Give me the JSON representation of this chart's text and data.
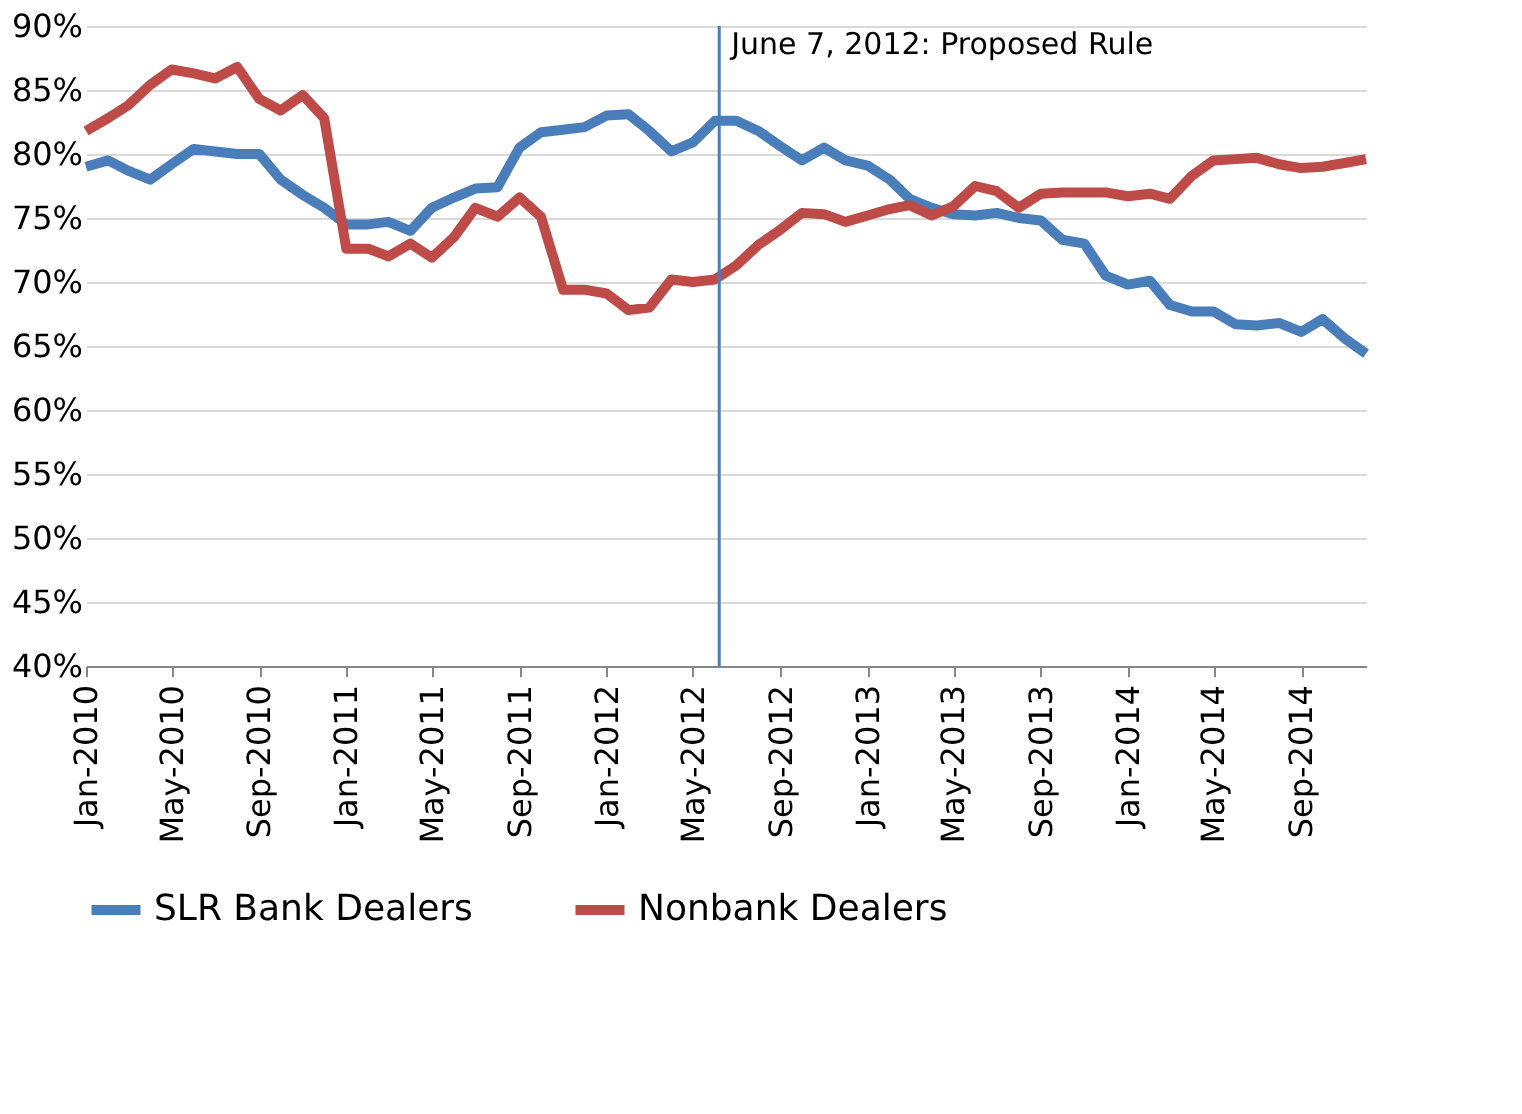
{
  "chart_data": {
    "type": "line",
    "x": [
      "2010-01",
      "2010-02",
      "2010-03",
      "2010-04",
      "2010-05",
      "2010-06",
      "2010-07",
      "2010-08",
      "2010-09",
      "2010-10",
      "2010-11",
      "2010-12",
      "2011-01",
      "2011-02",
      "2011-03",
      "2011-04",
      "2011-05",
      "2011-06",
      "2011-07",
      "2011-08",
      "2011-09",
      "2011-10",
      "2011-11",
      "2011-12",
      "2012-01",
      "2012-02",
      "2012-03",
      "2012-04",
      "2012-05",
      "2012-06",
      "2012-07",
      "2012-08",
      "2012-09",
      "2012-10",
      "2012-11",
      "2012-12",
      "2013-01",
      "2013-02",
      "2013-03",
      "2013-04",
      "2013-05",
      "2013-06",
      "2013-07",
      "2013-08",
      "2013-09",
      "2013-10",
      "2013-11",
      "2013-12",
      "2014-01",
      "2014-02",
      "2014-03",
      "2014-04",
      "2014-05",
      "2014-06",
      "2014-07",
      "2014-08",
      "2014-09",
      "2014-10",
      "2014-11",
      "2014-12"
    ],
    "series": [
      {
        "name": "SLR Bank Dealers",
        "color": "#4a7ebb",
        "values": [
          79.0,
          79.5,
          78.7,
          78.0,
          79.2,
          80.4,
          80.2,
          80.0,
          80.0,
          78.0,
          76.8,
          75.8,
          74.5,
          74.5,
          74.7,
          74.0,
          75.8,
          76.6,
          77.3,
          77.4,
          80.5,
          81.7,
          81.9,
          82.1,
          83.0,
          83.1,
          81.8,
          80.2,
          80.9,
          82.6,
          82.6,
          81.8,
          80.6,
          79.5,
          80.5,
          79.5,
          79.1,
          78.0,
          76.5,
          75.8,
          75.3,
          75.2,
          75.4,
          75.0,
          74.8,
          73.3,
          73.0,
          70.5,
          69.8,
          70.1,
          68.2,
          67.7,
          67.7,
          66.7,
          66.6,
          66.8,
          66.1,
          67.1,
          65.6,
          64.4
        ]
      },
      {
        "name": "Nonbank Dealers",
        "color": "#be4b48",
        "values": [
          81.8,
          82.8,
          83.8,
          85.4,
          86.6,
          86.3,
          85.9,
          86.8,
          84.3,
          83.4,
          84.6,
          82.8,
          72.6,
          72.6,
          72.0,
          73.0,
          71.9,
          73.5,
          75.8,
          75.1,
          76.6,
          75.1,
          69.4,
          69.4,
          69.1,
          67.8,
          68.0,
          70.2,
          70.0,
          70.2,
          71.3,
          72.9,
          74.1,
          75.4,
          75.3,
          74.7,
          75.2,
          75.7,
          76.0,
          75.2,
          75.9,
          77.5,
          77.1,
          75.8,
          76.9,
          77.0,
          77.0,
          77.0,
          76.7,
          76.9,
          76.5,
          78.3,
          79.5,
          79.6,
          79.7,
          79.2,
          78.9,
          79.0,
          79.3,
          79.6
        ]
      }
    ],
    "xlim": [
      "2010-01",
      "2014-12"
    ],
    "xticks": [
      {
        "value": "2010-01",
        "label": "Jan-2010"
      },
      {
        "value": "2010-05",
        "label": "May-2010"
      },
      {
        "value": "2010-09",
        "label": "Sep-2010"
      },
      {
        "value": "2011-01",
        "label": "Jan-2011"
      },
      {
        "value": "2011-05",
        "label": "May-2011"
      },
      {
        "value": "2011-09",
        "label": "Sep-2011"
      },
      {
        "value": "2012-01",
        "label": "Jan-2012"
      },
      {
        "value": "2012-05",
        "label": "May-2012"
      },
      {
        "value": "2012-09",
        "label": "Sep-2012"
      },
      {
        "value": "2013-01",
        "label": "Jan-2013"
      },
      {
        "value": "2013-05",
        "label": "May-2013"
      },
      {
        "value": "2013-09",
        "label": "Sep-2013"
      },
      {
        "value": "2014-01",
        "label": "Jan-2014"
      },
      {
        "value": "2014-05",
        "label": "May-2014"
      },
      {
        "value": "2014-09",
        "label": "Sep-2014"
      }
    ],
    "ylim": [
      40,
      90
    ],
    "yticks": [
      {
        "value": 40,
        "label": "40%"
      },
      {
        "value": 45,
        "label": "45%"
      },
      {
        "value": 50,
        "label": "50%"
      },
      {
        "value": 55,
        "label": "55%"
      },
      {
        "value": 60,
        "label": "60%"
      },
      {
        "value": 65,
        "label": "65%"
      },
      {
        "value": 70,
        "label": "70%"
      },
      {
        "value": 75,
        "label": "75%"
      },
      {
        "value": 80,
        "label": "80%"
      },
      {
        "value": 85,
        "label": "85%"
      },
      {
        "value": 90,
        "label": "90%"
      }
    ],
    "ref_lines": [
      {
        "axis": "x",
        "value": "2012-06-07",
        "label": "June 7, 2012: Proposed Rule",
        "color": "#4a7ebb"
      }
    ],
    "grid": "y",
    "legend": "bottom",
    "marker": "none",
    "line_style": "solid"
  }
}
